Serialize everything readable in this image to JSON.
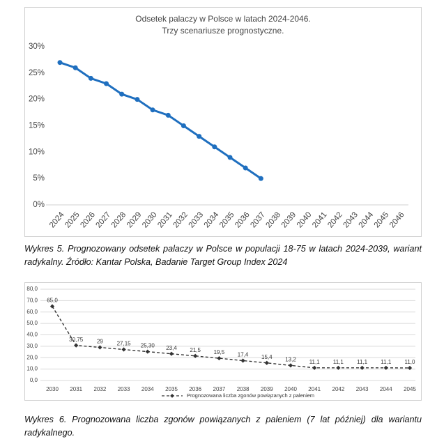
{
  "chart_data": [
    {
      "type": "line",
      "title": [
        "Odsetek palaczy w Polsce w latach 2024-2046.",
        "Trzy scenariusze prognostyczne."
      ],
      "categories": [
        "2024",
        "2025",
        "2026",
        "2027",
        "2028",
        "2029",
        "2030",
        "2031",
        "2032",
        "2033",
        "2034",
        "2035",
        "2036",
        "2037",
        "2038",
        "2039",
        "2040",
        "2041",
        "2042",
        "2043",
        "2044",
        "2045",
        "2046"
      ],
      "values": [
        27,
        26,
        24,
        23,
        21,
        20,
        18,
        17,
        15,
        13,
        11,
        9,
        7,
        5,
        null,
        null,
        null,
        null,
        null,
        null,
        null,
        null,
        null
      ],
      "color": "#1f6fbf",
      "ylim": [
        0,
        30
      ],
      "yticks": [
        {
          "value": 0,
          "label": "0%"
        },
        {
          "value": 5,
          "label": "5%"
        },
        {
          "value": 10,
          "label": "10%"
        },
        {
          "value": 15,
          "label": "15%"
        },
        {
          "value": 20,
          "label": "20%"
        },
        {
          "value": 25,
          "label": "25%"
        },
        {
          "value": 30,
          "label": "30%"
        }
      ],
      "grid": false
    },
    {
      "type": "line",
      "categories": [
        "2030",
        "2031",
        "2032",
        "2033",
        "2034",
        "2035",
        "2036",
        "2037",
        "2038",
        "2039",
        "2040",
        "2041",
        "2042",
        "2043",
        "2044",
        "2045"
      ],
      "series": [
        {
          "name": "Prognozowana liczba zgonów powiązanych z paleniem",
          "color": "#333333",
          "values": [
            65,
            30.75,
            29,
            27.15,
            25.3,
            23.4,
            21.5,
            19.5,
            17.4,
            15.4,
            13.2,
            11.1,
            11.1,
            11.1,
            11.1,
            11.0
          ],
          "value_labels": [
            "65,0",
            "30,75",
            "29",
            "27,15",
            "25,30",
            "23,4",
            "21,5",
            "19,5",
            "17,4",
            "15,4",
            "13,2",
            "11,1",
            "11,1",
            "11,1",
            "11,1",
            "11,0"
          ]
        }
      ],
      "ylim": [
        0,
        80
      ],
      "yticks": [
        {
          "value": 0,
          "label": "0,0"
        },
        {
          "value": 10,
          "label": "10,0"
        },
        {
          "value": 20,
          "label": "20,0"
        },
        {
          "value": 30,
          "label": "30,0"
        },
        {
          "value": 40,
          "label": "40,0"
        },
        {
          "value": 50,
          "label": "50,0"
        },
        {
          "value": 60,
          "label": "60,0"
        },
        {
          "value": 70,
          "label": "70,0"
        },
        {
          "value": 80,
          "label": "80,0"
        }
      ],
      "grid": true,
      "legend": "bottom"
    }
  ],
  "captions": [
    "Wykres 5. Prognozowany odsetek palaczy w Polsce w populacji 18-75 w latach 2024-2039, wariant radykalny. Źródło: Kantar Polska, Badanie Target Group Index 2024",
    "Wykres 6. Prognozowana liczba zgonów powiązanych z paleniem (7 lat później) dla wariantu radykalnego."
  ]
}
